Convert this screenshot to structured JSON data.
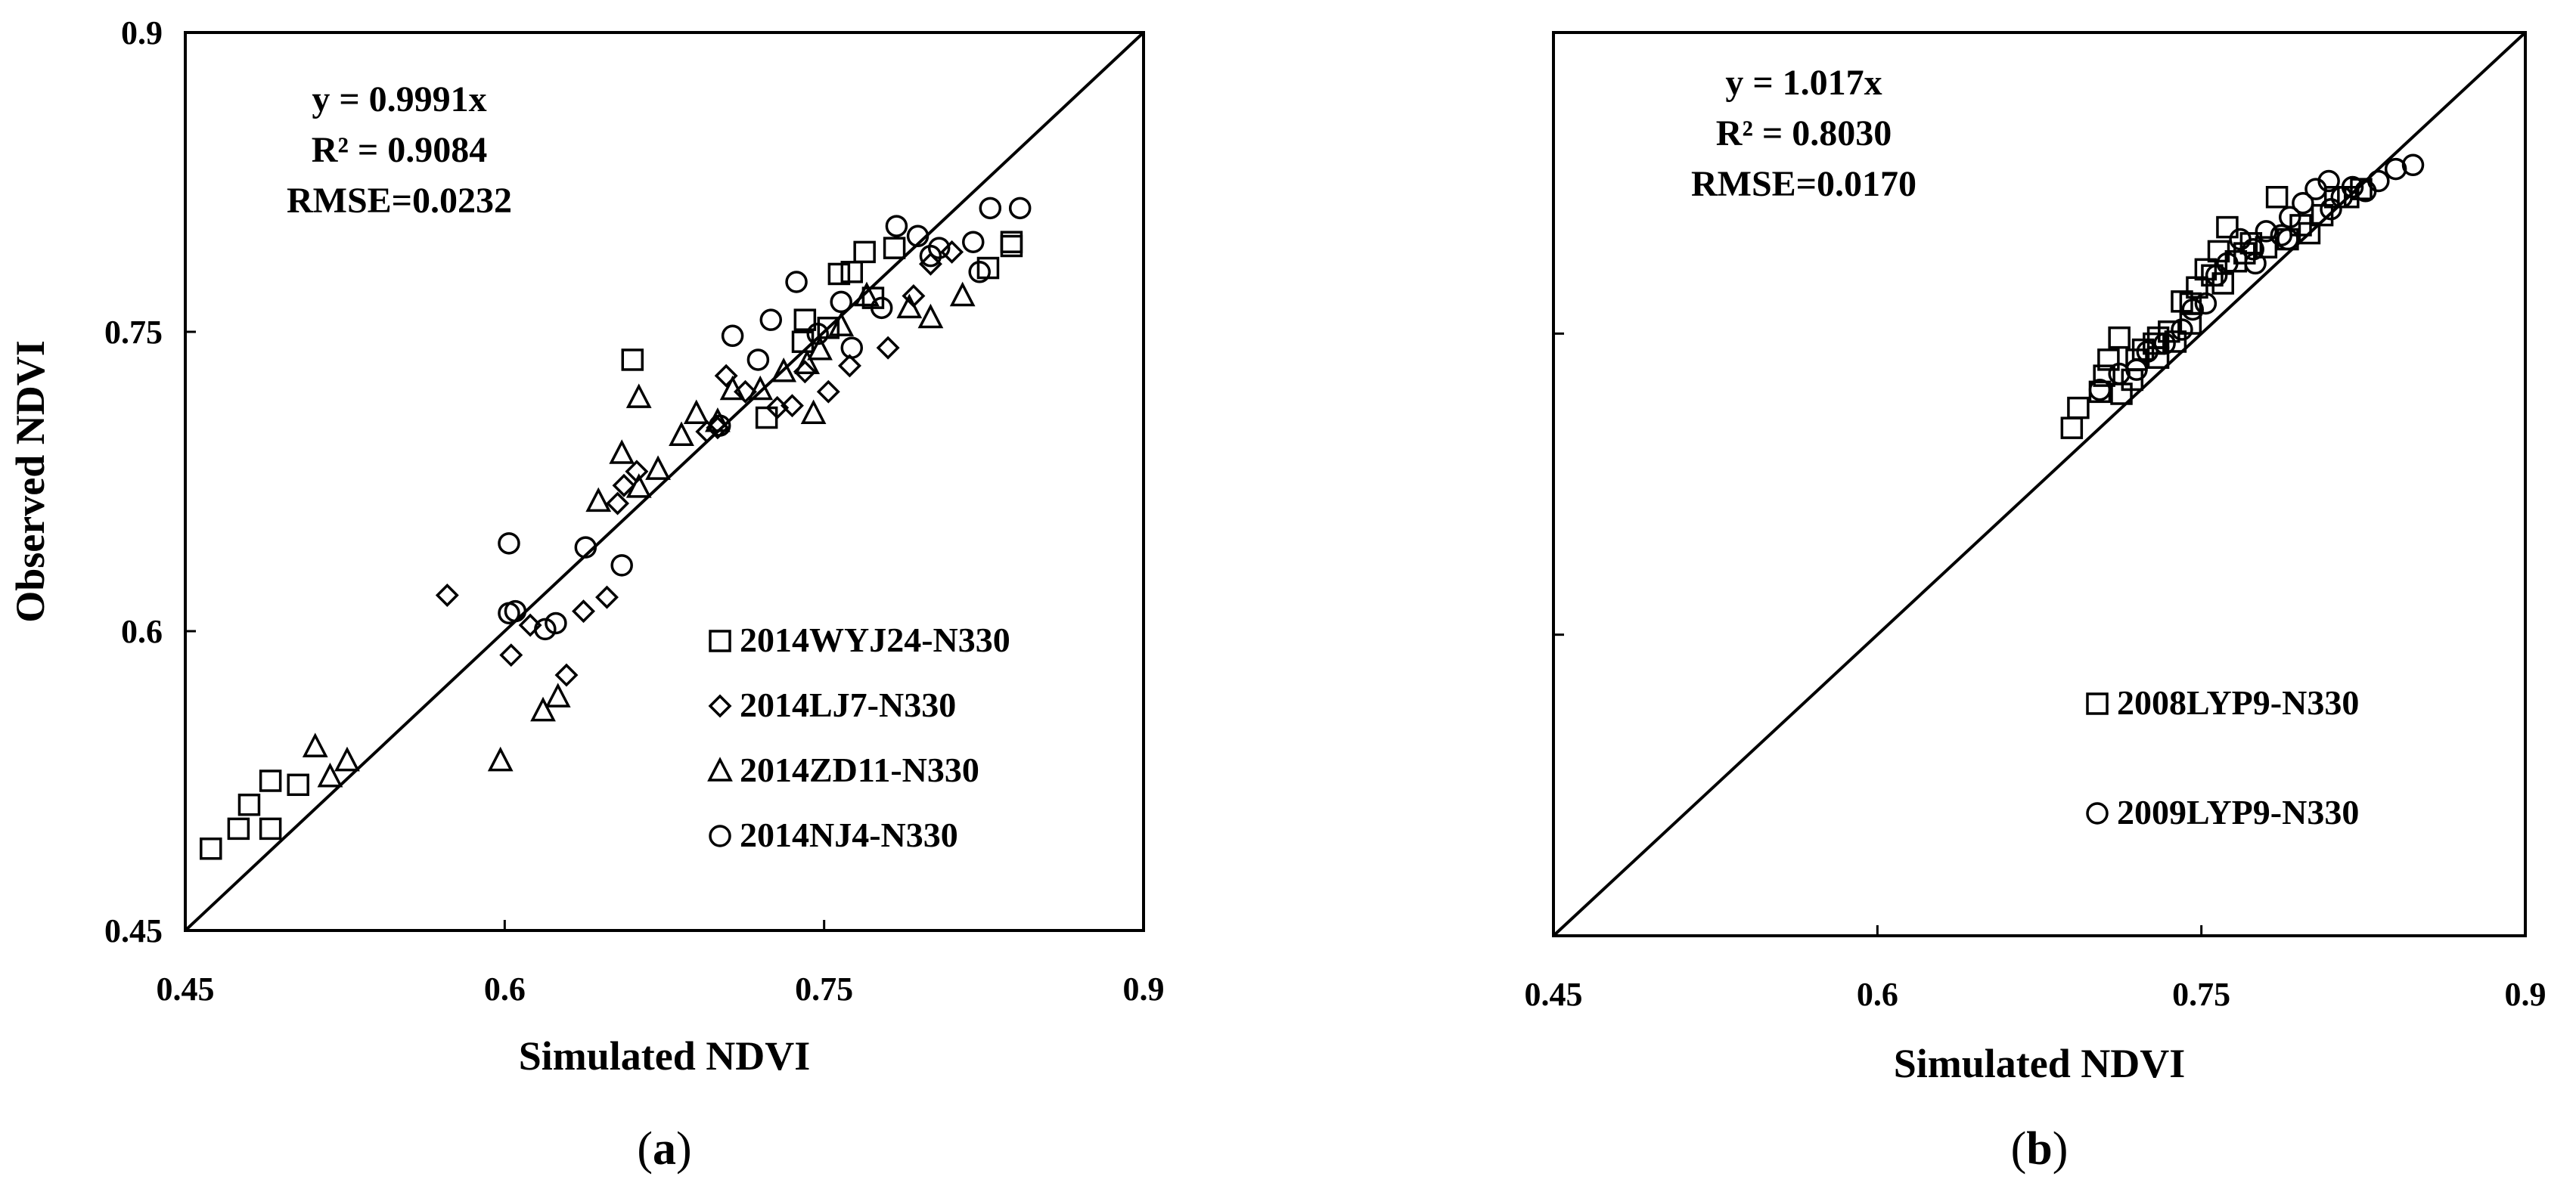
{
  "chart_data": [
    {
      "panel_label": "a",
      "type": "scatter",
      "xlabel": "Simulated NDVI",
      "ylabel": "Observed NDVI",
      "xlim": [
        0.45,
        0.9
      ],
      "ylim": [
        0.45,
        0.9
      ],
      "xticks": [
        "0.45",
        "0.6",
        "0.75",
        "0.9"
      ],
      "yticks": [
        "0.45",
        "0.6",
        "0.75",
        "0.9"
      ],
      "reference_line": "1:1",
      "legend_position": "bottom-right",
      "annotations": [
        "y = 0.9991x",
        "R² = 0.9084",
        "RMSE=0.0232"
      ],
      "series": [
        {
          "name": "2014WYJ24-N330",
          "marker": "square",
          "points": [
            [
              0.462,
              0.491
            ],
            [
              0.475,
              0.501
            ],
            [
              0.48,
              0.513
            ],
            [
              0.49,
              0.501
            ],
            [
              0.49,
              0.525
            ],
            [
              0.503,
              0.523
            ],
            [
              0.66,
              0.736
            ],
            [
              0.723,
              0.707
            ],
            [
              0.741,
              0.756
            ],
            [
              0.752,
              0.752
            ],
            [
              0.757,
              0.779
            ],
            [
              0.763,
              0.78
            ],
            [
              0.769,
              0.79
            ],
            [
              0.783,
              0.792
            ],
            [
              0.827,
              0.782
            ],
            [
              0.838,
              0.793
            ],
            [
              0.838,
              0.795
            ],
            [
              0.773,
              0.767
            ],
            [
              0.74,
              0.745
            ]
          ]
        },
        {
          "name": "2014LJ7-N330",
          "marker": "diamond",
          "points": [
            [
              0.573,
              0.618
            ],
            [
              0.603,
              0.588
            ],
            [
              0.612,
              0.603
            ],
            [
              0.629,
              0.578
            ],
            [
              0.637,
              0.61
            ],
            [
              0.648,
              0.617
            ],
            [
              0.653,
              0.664
            ],
            [
              0.656,
              0.673
            ],
            [
              0.662,
              0.68
            ],
            [
              0.695,
              0.7
            ],
            [
              0.7,
              0.702
            ],
            [
              0.704,
              0.728
            ],
            [
              0.713,
              0.72
            ],
            [
              0.728,
              0.712
            ],
            [
              0.735,
              0.713
            ],
            [
              0.741,
              0.73
            ],
            [
              0.752,
              0.72
            ],
            [
              0.762,
              0.733
            ],
            [
              0.78,
              0.742
            ],
            [
              0.792,
              0.768
            ],
            [
              0.8,
              0.784
            ],
            [
              0.81,
              0.79
            ]
          ]
        },
        {
          "name": "2014ZD11-N330",
          "marker": "triangle",
          "points": [
            [
              0.511,
              0.542
            ],
            [
              0.518,
              0.527
            ],
            [
              0.526,
              0.535
            ],
            [
              0.598,
              0.535
            ],
            [
              0.618,
              0.56
            ],
            [
              0.625,
              0.567
            ],
            [
              0.644,
              0.665
            ],
            [
              0.655,
              0.689
            ],
            [
              0.663,
              0.672
            ],
            [
              0.663,
              0.717
            ],
            [
              0.672,
              0.681
            ],
            [
              0.683,
              0.698
            ],
            [
              0.69,
              0.709
            ],
            [
              0.7,
              0.705
            ],
            [
              0.707,
              0.721
            ],
            [
              0.72,
              0.721
            ],
            [
              0.731,
              0.73
            ],
            [
              0.742,
              0.734
            ],
            [
              0.745,
              0.709
            ],
            [
              0.748,
              0.741
            ],
            [
              0.758,
              0.753
            ],
            [
              0.77,
              0.768
            ],
            [
              0.79,
              0.762
            ],
            [
              0.815,
              0.768
            ],
            [
              0.8,
              0.757
            ]
          ]
        },
        {
          "name": "2014NJ4-N330",
          "marker": "circle",
          "points": [
            [
              0.602,
              0.644
            ],
            [
              0.602,
              0.609
            ],
            [
              0.605,
              0.61
            ],
            [
              0.619,
              0.601
            ],
            [
              0.624,
              0.604
            ],
            [
              0.638,
              0.642
            ],
            [
              0.655,
              0.633
            ],
            [
              0.701,
              0.703
            ],
            [
              0.707,
              0.748
            ],
            [
              0.719,
              0.736
            ],
            [
              0.725,
              0.756
            ],
            [
              0.737,
              0.775
            ],
            [
              0.747,
              0.749
            ],
            [
              0.758,
              0.765
            ],
            [
              0.763,
              0.742
            ],
            [
              0.777,
              0.762
            ],
            [
              0.784,
              0.803
            ],
            [
              0.794,
              0.798
            ],
            [
              0.804,
              0.792
            ],
            [
              0.82,
              0.795
            ],
            [
              0.823,
              0.78
            ],
            [
              0.828,
              0.812
            ],
            [
              0.842,
              0.812
            ],
            [
              0.8,
              0.788
            ]
          ]
        }
      ]
    },
    {
      "panel_label": "b",
      "type": "scatter",
      "xlabel": "Simulated NDVI",
      "ylabel": "",
      "xlim": [
        0.45,
        0.9
      ],
      "ylim": [
        0.45,
        0.9
      ],
      "xticks": [
        "0.45",
        "0.6",
        "0.75",
        "0.9"
      ],
      "yticks": [],
      "reference_line": "1:1",
      "legend_position": "bottom-right",
      "annotations": [
        "y = 1.017x",
        "R² = 0.8030",
        "RMSE=0.0170"
      ],
      "series": [
        {
          "name": "2008LYP9-N330",
          "marker": "square",
          "points": [
            [
              0.69,
              0.703
            ],
            [
              0.693,
              0.713
            ],
            [
              0.703,
              0.721
            ],
            [
              0.705,
              0.729
            ],
            [
              0.707,
              0.737
            ],
            [
              0.712,
              0.748
            ],
            [
              0.713,
              0.72
            ],
            [
              0.718,
              0.727
            ],
            [
              0.72,
              0.737
            ],
            [
              0.723,
              0.742
            ],
            [
              0.728,
              0.745
            ],
            [
              0.73,
              0.738
            ],
            [
              0.735,
              0.751
            ],
            [
              0.738,
              0.746
            ],
            [
              0.741,
              0.766
            ],
            [
              0.745,
              0.755
            ],
            [
              0.748,
              0.773
            ],
            [
              0.752,
              0.782
            ],
            [
              0.755,
              0.779
            ],
            [
              0.758,
              0.791
            ],
            [
              0.762,
              0.803
            ],
            [
              0.766,
              0.786
            ],
            [
              0.77,
              0.79
            ],
            [
              0.773,
              0.795
            ],
            [
              0.78,
              0.793
            ],
            [
              0.785,
              0.818
            ],
            [
              0.79,
              0.797
            ],
            [
              0.796,
              0.804
            ],
            [
              0.8,
              0.8
            ],
            [
              0.806,
              0.809
            ],
            [
              0.812,
              0.818
            ],
            [
              0.818,
              0.818
            ],
            [
              0.824,
              0.822
            ],
            [
              0.73,
              0.748
            ],
            [
              0.745,
              0.765
            ],
            [
              0.76,
              0.775
            ]
          ]
        },
        {
          "name": "2009LYP9-N330",
          "marker": "circle",
          "points": [
            [
              0.703,
              0.722
            ],
            [
              0.712,
              0.73
            ],
            [
              0.72,
              0.732
            ],
            [
              0.725,
              0.741
            ],
            [
              0.733,
              0.745
            ],
            [
              0.741,
              0.752
            ],
            [
              0.746,
              0.762
            ],
            [
              0.752,
              0.765
            ],
            [
              0.757,
              0.779
            ],
            [
              0.762,
              0.785
            ],
            [
              0.768,
              0.797
            ],
            [
              0.774,
              0.792
            ],
            [
              0.78,
              0.801
            ],
            [
              0.787,
              0.799
            ],
            [
              0.791,
              0.808
            ],
            [
              0.797,
              0.815
            ],
            [
              0.803,
              0.822
            ],
            [
              0.809,
              0.826
            ],
            [
              0.815,
              0.818
            ],
            [
              0.82,
              0.823
            ],
            [
              0.826,
              0.821
            ],
            [
              0.832,
              0.826
            ],
            [
              0.84,
              0.832
            ],
            [
              0.848,
              0.834
            ],
            [
              0.775,
              0.785
            ],
            [
              0.79,
              0.797
            ],
            [
              0.81,
              0.812
            ]
          ]
        }
      ]
    }
  ]
}
